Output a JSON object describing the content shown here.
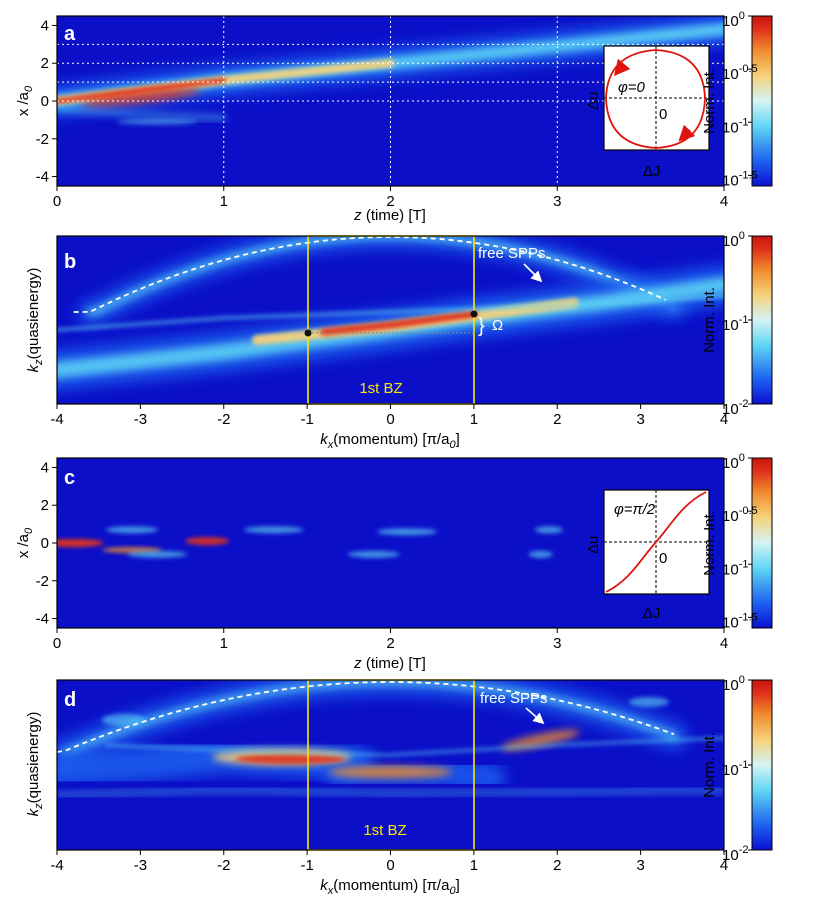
{
  "colors": {
    "colormap": [
      "#0b0fd2",
      "#1e62f0",
      "#5fd6f4",
      "#d4f3f6",
      "#f6d27a",
      "#f08a2c",
      "#e0321a",
      "#c8140f"
    ],
    "boundary": "#ffe600",
    "arrow": "#e0140f",
    "dots": "#111111"
  },
  "chart_data": [
    {
      "panel": "a",
      "type": "heatmap",
      "xlabel_italic": "z",
      "xlabel_rest": " (time) [T]",
      "ylabel_main": "x /a",
      "ylabel_sub": "0",
      "xlim": [
        0,
        4
      ],
      "ylim": [
        -4.5,
        4.5
      ],
      "xticks": [
        "0",
        "1",
        "2",
        "3",
        "4"
      ],
      "yticks": [
        "4",
        "2",
        "0",
        "-2",
        "-4"
      ],
      "ytick_values": [
        4,
        2,
        0,
        -2,
        -4
      ],
      "gridlines_x": [
        1,
        2,
        3
      ],
      "gridlines_y": [
        3,
        2,
        1,
        0
      ],
      "beams": [
        {
          "description": "main beam",
          "points": [
            [
              0,
              0
            ],
            [
              1,
              1.1
            ],
            [
              2,
              2.0
            ],
            [
              3,
              2.9
            ],
            [
              4,
              3.8
            ]
          ],
          "peak": 1.0
        },
        {
          "description": "lower branch",
          "points": [
            [
              0,
              -0.4
            ],
            [
              0.5,
              -0.7
            ],
            [
              1.0,
              -0.9
            ]
          ],
          "peak": 0.4
        }
      ],
      "inset": {
        "phi_label": "φ=0",
        "xlabel": "ΔJ",
        "ylabel": "Δu",
        "origin_label": "0",
        "curve": "closed loop"
      },
      "colorbar": {
        "label": "Norm. Int.",
        "ticks": [
          "10",
          "10",
          "10",
          "10"
        ],
        "exponents": [
          "0",
          "-0.5",
          "-1",
          "-1.5"
        ],
        "range": [
          -1.6,
          0
        ]
      }
    },
    {
      "panel": "b",
      "type": "heatmap",
      "xlabel_italic": "k",
      "xlabel_sub": "x",
      "xlabel_rest": "(momentum) [π/a",
      "xlabel_sub2": "0",
      "xlabel_end": "]",
      "ylabel_italic": "k",
      "ylabel_sub": "z",
      "ylabel_rest": "(quasienergy)",
      "xlim": [
        -4,
        4
      ],
      "xticks": [
        "-4",
        "-3",
        "-2",
        "-1",
        "0",
        "1",
        "2",
        "3",
        "4"
      ],
      "bz_range": [
        -1,
        1
      ],
      "bz_label": "1st BZ",
      "free_spp_label": "free SPPs",
      "omega_label": "Ω",
      "bands": [
        {
          "description": "main tilted band",
          "from": [
            -4,
            -0.8
          ],
          "to": [
            4,
            0.6
          ],
          "peak_at": 0.5,
          "peak": 1.0
        },
        {
          "description": "parabola band",
          "center": 0,
          "curvature": 0.07,
          "offset": 0.2,
          "peak": 0.35
        }
      ],
      "colorbar": {
        "label": "Norm. Int.",
        "ticks": [
          "10",
          "10",
          "10"
        ],
        "exponents": [
          "0",
          "-1",
          "-2"
        ],
        "range": [
          -2,
          0
        ]
      }
    },
    {
      "panel": "c",
      "type": "heatmap",
      "xlabel_italic": "z",
      "xlabel_rest": " (time) [T]",
      "ylabel_main": "x /a",
      "ylabel_sub": "0",
      "xlim": [
        0,
        4
      ],
      "ylim": [
        -4.5,
        4.5
      ],
      "xticks": [
        "0",
        "1",
        "2",
        "3",
        "4"
      ],
      "yticks": [
        "4",
        "2",
        "0",
        "-2",
        "-4"
      ],
      "ytick_values": [
        4,
        2,
        0,
        -2,
        -4
      ],
      "beams": [
        {
          "description": "localized beam",
          "center": 0,
          "extent": [
            0,
            1.1
          ],
          "peak": 1.0
        },
        {
          "description": "upper side",
          "center": 0.7,
          "extent": [
            0.2,
            3.0
          ],
          "peak": 0.3
        },
        {
          "description": "lower side",
          "center": -0.6,
          "extent": [
            0.2,
            2.9
          ],
          "peak": 0.3
        }
      ],
      "inset": {
        "phi_label": "φ=π/2",
        "xlabel": "ΔJ",
        "ylabel": "Δu",
        "origin_label": "0",
        "curve": "s-curve"
      },
      "colorbar": {
        "label": "Norm. Int.",
        "ticks": [
          "10",
          "10",
          "10",
          "10"
        ],
        "exponents": [
          "0",
          "-0.5",
          "-1",
          "-1.5"
        ],
        "range": [
          -1.6,
          0
        ]
      }
    },
    {
      "panel": "d",
      "type": "heatmap",
      "xlabel_italic": "k",
      "xlabel_sub": "x",
      "xlabel_rest": "(momentum) [π/a",
      "xlabel_sub2": "0",
      "xlabel_end": "]",
      "ylabel_italic": "k",
      "ylabel_sub": "z",
      "ylabel_rest": "(quasienergy)",
      "xlim": [
        -4,
        4
      ],
      "xticks": [
        "-4",
        "-3",
        "-2",
        "-1",
        "0",
        "1",
        "2",
        "3",
        "4"
      ],
      "bz_range": [
        -1,
        1
      ],
      "bz_label": "1st BZ",
      "free_spp_label": "free SPPs",
      "bands": [
        {
          "description": "flat band",
          "center": -1.1,
          "peak": 1.0
        },
        {
          "description": "central band",
          "center": 0.0,
          "peak": 0.8
        },
        {
          "description": "parabola band",
          "peak": 0.5
        }
      ],
      "colorbar": {
        "label": "Norm. Int.",
        "ticks": [
          "10",
          "10",
          "10"
        ],
        "exponents": [
          "0",
          "-1",
          "-2"
        ],
        "range": [
          -2,
          0
        ]
      }
    }
  ]
}
